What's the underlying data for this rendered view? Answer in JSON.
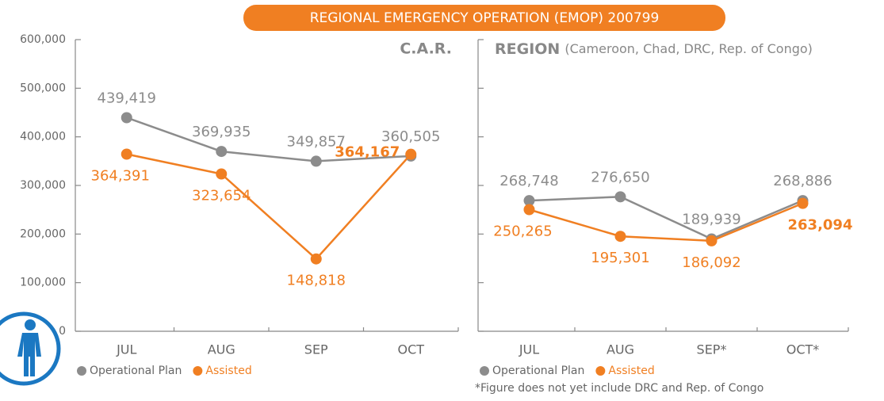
{
  "header": "REGIONAL EMERGENCY OPERATION (EMOP) 200799",
  "chart_data": [
    {
      "type": "line",
      "title": "C.A.R.",
      "categories": [
        "JUL",
        "AUG",
        "SEP",
        "OCT"
      ],
      "series": [
        {
          "name": "Operational Plan",
          "color": "#8c8c8c",
          "values": [
            439419,
            369935,
            349857,
            360505
          ],
          "value_labels": [
            "439,419",
            "369,935",
            "349,857",
            "360,505"
          ]
        },
        {
          "name": "Assisted",
          "color": "#f07f22",
          "values": [
            364391,
            323654,
            148818,
            364167
          ],
          "value_labels": [
            "364,391",
            "323,654",
            "148,818",
            "364,167"
          ]
        }
      ],
      "ylim": [
        0,
        600000
      ],
      "yticks": [
        0,
        {
          "value": 100000,
          "label": "100,000"
        },
        {
          "value": 200000,
          "label": "200,000"
        },
        {
          "value": 300000,
          "label": "300,000"
        },
        {
          "value": 400000,
          "label": "400,000"
        },
        {
          "value": 500000,
          "label": "500,000"
        },
        {
          "value": 600000,
          "label": "600,000"
        }
      ]
    },
    {
      "type": "line",
      "title": "REGION",
      "subtitle": "(Cameroon, Chad, DRC, Rep. of Congo)",
      "categories": [
        "JUL",
        "AUG",
        "SEP*",
        "OCT*"
      ],
      "series": [
        {
          "name": "Operational Plan",
          "color": "#8c8c8c",
          "values": [
            268748,
            276650,
            189939,
            268886
          ],
          "value_labels": [
            "268,748",
            "276,650",
            "189,939",
            "268,886"
          ]
        },
        {
          "name": "Assisted",
          "color": "#f07f22",
          "values": [
            250265,
            195301,
            186092,
            263094
          ],
          "value_labels": [
            "250,265",
            "195,301",
            "186,092",
            "263,094"
          ]
        }
      ],
      "ylim": [
        0,
        600000
      ],
      "footnote": "*Figure does not yet include DRC and Rep. of Congo"
    }
  ]
}
